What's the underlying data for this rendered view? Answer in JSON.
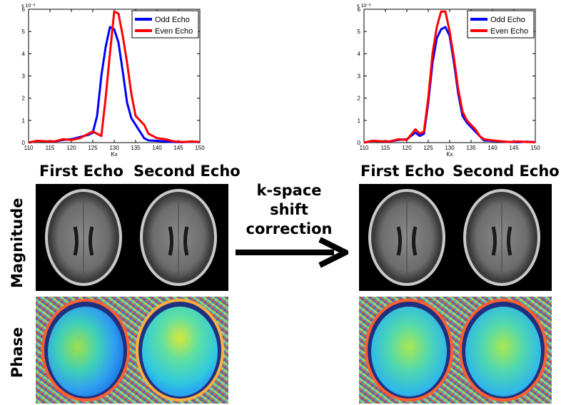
{
  "chart_data": [
    {
      "type": "line",
      "title": "",
      "xlabel": "Kx",
      "ylabel": "",
      "y_exponent_label": "x 10⁻²",
      "xlim": [
        110,
        150
      ],
      "ylim": [
        0,
        0.06
      ],
      "x_ticks": [
        "110",
        "115",
        "120",
        "125",
        "130",
        "135",
        "140",
        "145",
        "150"
      ],
      "y_ticks": [
        "0",
        "1",
        "2",
        "3",
        "4",
        "5",
        "6"
      ],
      "legend_position": "top-right",
      "series": [
        {
          "name": "Odd Echo",
          "color": "#0000ff",
          "x": [
            110,
            112,
            114,
            116,
            118,
            120,
            122,
            124,
            125,
            126,
            127,
            128,
            129,
            130,
            131,
            132,
            133,
            134,
            135,
            136,
            137,
            138,
            140,
            142,
            144,
            146,
            148,
            150
          ],
          "y": [
            0,
            0.0008,
            0.0006,
            0.0005,
            0.0012,
            0.0015,
            0.0025,
            0.0035,
            0.0045,
            0.012,
            0.03,
            0.043,
            0.052,
            0.051,
            0.045,
            0.032,
            0.018,
            0.011,
            0.008,
            0.005,
            0.002,
            0.001,
            0.0008,
            0.0005,
            0.0003,
            0.0002,
            0.0004,
            0.0002
          ]
        },
        {
          "name": "Even Echo",
          "color": "#ff0000",
          "x": [
            110,
            112,
            114,
            116,
            118,
            120,
            122,
            124,
            125,
            126,
            127,
            128,
            129,
            130,
            131,
            132,
            133,
            134,
            135,
            136,
            137,
            138,
            140,
            142,
            144,
            146,
            148,
            150
          ],
          "y": [
            0,
            0.0008,
            0.0006,
            0.0005,
            0.0015,
            0.0012,
            0.002,
            0.004,
            0.005,
            0.004,
            0.003,
            0.02,
            0.04,
            0.059,
            0.058,
            0.048,
            0.036,
            0.022,
            0.012,
            0.01,
            0.008,
            0.004,
            0.002,
            0.0015,
            0.0005,
            0.0003,
            0.0005,
            0.0003
          ]
        }
      ]
    },
    {
      "type": "line",
      "title": "",
      "xlabel": "Kx",
      "ylabel": "",
      "y_exponent_label": "x 10⁻²",
      "xlim": [
        110,
        150
      ],
      "ylim": [
        0,
        0.06
      ],
      "x_ticks": [
        "110",
        "115",
        "120",
        "125",
        "130",
        "135",
        "140",
        "145",
        "150"
      ],
      "y_ticks": [
        "0",
        "1",
        "2",
        "3",
        "4",
        "5",
        "6"
      ],
      "legend_position": "top-right",
      "series": [
        {
          "name": "Odd Echo",
          "color": "#0000ff",
          "x": [
            110,
            112,
            114,
            116,
            118,
            120,
            122,
            123,
            124,
            125,
            126,
            127,
            128,
            129,
            130,
            131,
            132,
            133,
            134,
            135,
            136,
            137,
            138,
            140,
            142,
            144,
            146,
            148,
            150
          ],
          "y": [
            0,
            0.0008,
            0.0006,
            0.0005,
            0.0012,
            0.0015,
            0.0045,
            0.003,
            0.004,
            0.018,
            0.036,
            0.047,
            0.051,
            0.052,
            0.048,
            0.036,
            0.022,
            0.012,
            0.009,
            0.007,
            0.005,
            0.003,
            0.001,
            0.0008,
            0.0005,
            0.0003,
            0.0002,
            0.0004,
            0.0002
          ]
        },
        {
          "name": "Even Echo",
          "color": "#ff0000",
          "x": [
            110,
            112,
            114,
            116,
            118,
            120,
            122,
            123,
            124,
            125,
            126,
            127,
            128,
            129,
            130,
            131,
            132,
            133,
            134,
            135,
            136,
            137,
            138,
            140,
            142,
            144,
            146,
            148,
            150
          ],
          "y": [
            0,
            0.0008,
            0.0006,
            0.0005,
            0.0015,
            0.0012,
            0.006,
            0.004,
            0.005,
            0.02,
            0.04,
            0.052,
            0.059,
            0.059,
            0.05,
            0.038,
            0.024,
            0.014,
            0.01,
            0.008,
            0.006,
            0.003,
            0.0015,
            0.001,
            0.0006,
            0.0003,
            0.0005,
            0.0003,
            0.0002
          ]
        }
      ]
    }
  ],
  "labels": {
    "left_first_echo": "First Echo",
    "left_second_echo": "Second Echo",
    "right_first_echo": "First Echo",
    "right_second_echo": "Second Echo",
    "magnitude": "Magnitude",
    "phase": "Phase",
    "correction_line1": "k-space",
    "correction_line2": "shift",
    "correction_line3": "correction"
  }
}
